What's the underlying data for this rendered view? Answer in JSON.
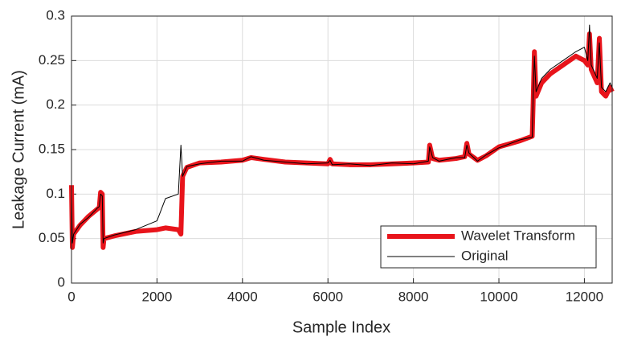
{
  "chart_data": {
    "type": "line",
    "xlabel": "Sample Index",
    "ylabel": "Leakage Current (mA)",
    "x": [
      0,
      20,
      50,
      200,
      400,
      600,
      650,
      680,
      720,
      740,
      760,
      1000,
      1500,
      2000,
      2200,
      2500,
      2560,
      2600,
      2700,
      3000,
      3500,
      4000,
      4200,
      4500,
      5000,
      5500,
      6000,
      6050,
      6100,
      6500,
      7000,
      7500,
      8000,
      8350,
      8380,
      8450,
      8600,
      9000,
      9200,
      9250,
      9300,
      9500,
      9700,
      10000,
      10500,
      10780,
      10800,
      10830,
      10870,
      11000,
      11200,
      11500,
      11800,
      12000,
      12080,
      12120,
      12160,
      12300,
      12350,
      12400,
      12500,
      12600,
      12650
    ],
    "series": [
      {
        "name": "Wavelet Transform",
        "color": "#e8141b",
        "width": 6,
        "values": [
          0.11,
          0.04,
          0.055,
          0.065,
          0.075,
          0.083,
          0.085,
          0.102,
          0.1,
          0.04,
          0.05,
          0.053,
          0.058,
          0.06,
          0.062,
          0.06,
          0.055,
          0.12,
          0.13,
          0.135,
          0.136,
          0.138,
          0.141,
          0.139,
          0.136,
          0.135,
          0.134,
          0.139,
          0.134,
          0.133,
          0.133,
          0.134,
          0.135,
          0.136,
          0.155,
          0.14,
          0.138,
          0.14,
          0.142,
          0.157,
          0.145,
          0.138,
          0.143,
          0.153,
          0.16,
          0.165,
          0.2,
          0.26,
          0.21,
          0.225,
          0.235,
          0.245,
          0.255,
          0.25,
          0.245,
          0.28,
          0.24,
          0.225,
          0.275,
          0.215,
          0.21,
          0.22,
          0.215
        ]
      },
      {
        "name": "Original",
        "color": "#000000",
        "width": 1,
        "values": [
          0.1,
          0.045,
          0.055,
          0.066,
          0.074,
          0.084,
          0.086,
          0.1,
          0.098,
          0.045,
          0.05,
          0.054,
          0.06,
          0.07,
          0.095,
          0.1,
          0.155,
          0.12,
          0.131,
          0.134,
          0.137,
          0.137,
          0.142,
          0.138,
          0.136,
          0.134,
          0.135,
          0.138,
          0.133,
          0.134,
          0.132,
          0.135,
          0.134,
          0.137,
          0.153,
          0.141,
          0.137,
          0.141,
          0.141,
          0.155,
          0.146,
          0.137,
          0.144,
          0.152,
          0.161,
          0.164,
          0.21,
          0.255,
          0.215,
          0.23,
          0.24,
          0.25,
          0.26,
          0.265,
          0.25,
          0.29,
          0.245,
          0.23,
          0.27,
          0.22,
          0.215,
          0.225,
          0.22
        ]
      }
    ],
    "xlim": [
      0,
      12650
    ],
    "ylim": [
      0,
      0.3
    ],
    "xticks": [
      0,
      2000,
      4000,
      6000,
      8000,
      10000,
      12000
    ],
    "yticks": [
      0,
      0.05,
      0.1,
      0.15,
      0.2,
      0.25,
      0.3
    ],
    "grid": true,
    "legend": "lower right"
  }
}
